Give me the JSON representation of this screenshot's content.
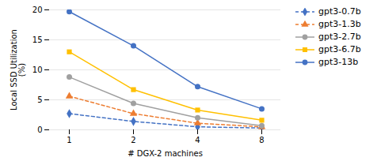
{
  "chart_data": {
    "type": "line",
    "xlabel": "# DGX-2 machines",
    "ylabel": "Local SSD Utilization\n(%)",
    "categories": [
      "1",
      "2",
      "4",
      "8"
    ],
    "series": [
      {
        "name": "gpt3-0.7b",
        "color": "#4472C4",
        "line_style": "dashed",
        "marker": "diamond",
        "values": [
          2.7,
          1.4,
          0.5,
          0.3
        ]
      },
      {
        "name": "gpt3-1.3b",
        "color": "#ED7D31",
        "line_style": "dashed",
        "marker": "triangle",
        "values": [
          5.6,
          2.7,
          1.1,
          0.5
        ]
      },
      {
        "name": "gpt3-2.7b",
        "color": "#A0A0A0",
        "line_style": "solid",
        "marker": "circle",
        "values": [
          8.8,
          4.4,
          2.0,
          0.7
        ]
      },
      {
        "name": "gpt3-6.7b",
        "color": "#FFC000",
        "line_style": "solid",
        "marker": "square",
        "values": [
          13.0,
          6.7,
          3.3,
          1.6
        ]
      },
      {
        "name": "gpt3-13b",
        "color": "#4472C4",
        "line_style": "solid",
        "marker": "circle",
        "values": [
          19.7,
          14.0,
          7.2,
          3.5
        ]
      }
    ],
    "ylim": [
      0,
      20
    ],
    "yticks": [
      0,
      5,
      10,
      15,
      20
    ],
    "grid": true,
    "legend": "upper right"
  }
}
